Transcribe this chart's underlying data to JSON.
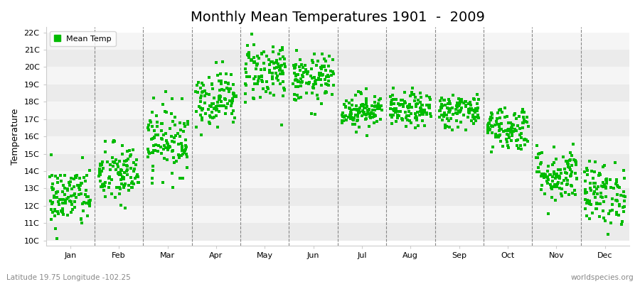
{
  "title": "Monthly Mean Temperatures 1901  -  2009",
  "ylabel": "Temperature",
  "xlabel_labels": [
    "Jan",
    "Feb",
    "Mar",
    "Apr",
    "May",
    "Jun",
    "Jul",
    "Aug",
    "Sep",
    "Oct",
    "Nov",
    "Dec"
  ],
  "ytick_labels": [
    "10C",
    "11C",
    "12C",
    "13C",
    "14C",
    "15C",
    "16C",
    "17C",
    "18C",
    "19C",
    "20C",
    "21C",
    "22C"
  ],
  "ytick_values": [
    10,
    11,
    12,
    13,
    14,
    15,
    16,
    17,
    18,
    19,
    20,
    21,
    22
  ],
  "ylim": [
    9.7,
    22.3
  ],
  "xlim": [
    0,
    12
  ],
  "background_color": "#ffffff",
  "plot_bg_color": "#ffffff",
  "stripe_light": "#ebebeb",
  "stripe_dark": "#f5f5f5",
  "marker_color": "#00bb00",
  "marker_size": 5,
  "grid_color": "#888888",
  "title_fontsize": 14,
  "axis_label_fontsize": 9,
  "tick_fontsize": 8,
  "footnote_left": "Latitude 19.75 Longitude -102.25",
  "footnote_right": "worldspecies.org",
  "legend_label": "Mean Temp",
  "num_years": 109,
  "monthly_means": [
    12.5,
    13.8,
    15.8,
    18.2,
    19.8,
    19.3,
    17.5,
    17.5,
    17.5,
    16.5,
    13.8,
    12.7
  ],
  "monthly_stds": [
    0.9,
    0.9,
    1.0,
    0.8,
    0.9,
    0.7,
    0.5,
    0.5,
    0.5,
    0.65,
    0.8,
    0.9
  ],
  "seed": 42
}
